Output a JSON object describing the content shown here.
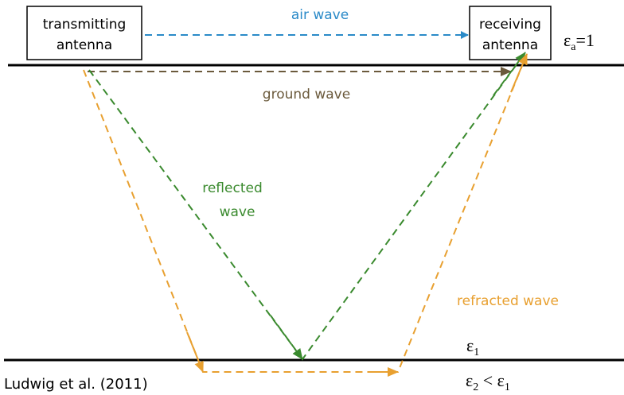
{
  "antennas": {
    "transmitting": [
      "transmitting",
      "antenna"
    ],
    "receiving": [
      "receiving",
      "antenna"
    ]
  },
  "waves": {
    "air": "air wave",
    "ground": "ground wave",
    "reflected": [
      "reflected",
      "wave"
    ],
    "refracted": "refracted wave"
  },
  "media": {
    "air": {
      "symbol": "ε",
      "subscript": "a",
      "rest": "=1"
    },
    "layer1": {
      "symbol": "ε",
      "subscript": "1"
    },
    "layer2": {
      "symbol": "ε",
      "subscript": "2",
      "relation": " < ",
      "symbol2": "ε",
      "subscript2": "1"
    }
  },
  "citation": "Ludwig et al. (2011)"
}
